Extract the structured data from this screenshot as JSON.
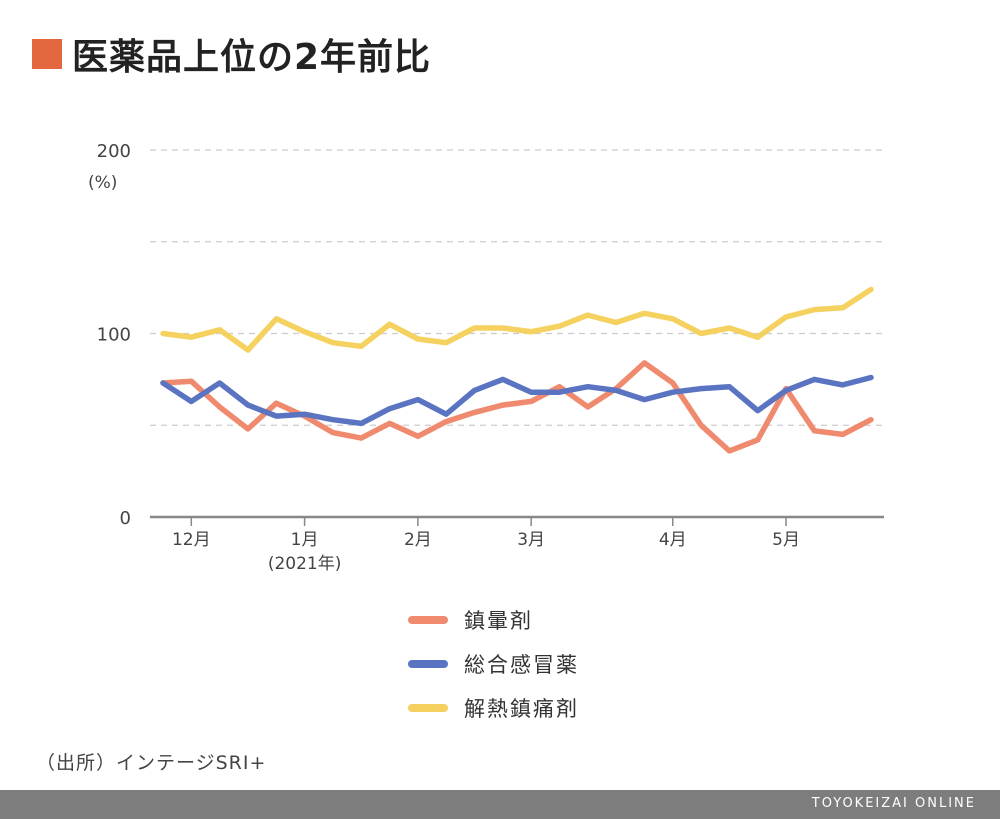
{
  "title": "医薬品上位の2年前比",
  "colors": {
    "title_square": "#e2673f",
    "series": [
      "#f08a6e",
      "#5b74c2",
      "#f5d15f"
    ],
    "grid": "#cccccc",
    "axis": "#888888",
    "footer": "#7d7d7d"
  },
  "chart_data": {
    "type": "line",
    "y_unit_label": "(%)",
    "ylim": [
      0,
      200
    ],
    "y_ticks": [
      "0",
      "100",
      "200"
    ],
    "y_gridlines": [
      50,
      100,
      150,
      200
    ],
    "x_tick_labels": [
      "12月",
      "1月",
      "2月",
      "3月",
      "4月",
      "5月"
    ],
    "x_tick_positions": [
      1,
      5,
      9,
      13,
      18,
      22
    ],
    "x_sub_label": "(2021年)",
    "x_count": 26,
    "series": [
      {
        "name": "鎮暈剤",
        "values": [
          73,
          74,
          60,
          48,
          62,
          55,
          46,
          43,
          51,
          44,
          52,
          57,
          61,
          63,
          71,
          60,
          70,
          84,
          73,
          50,
          36,
          42,
          70,
          47,
          45,
          53
        ]
      },
      {
        "name": "総合感冒薬",
        "values": [
          73,
          63,
          73,
          61,
          55,
          56,
          53,
          51,
          59,
          64,
          56,
          69,
          75,
          68,
          68,
          71,
          69,
          64,
          68,
          70,
          71,
          58,
          69,
          75,
          72,
          76
        ]
      },
      {
        "name": "解熱鎮痛剤",
        "values": [
          100,
          98,
          102,
          91,
          108,
          101,
          95,
          93,
          105,
          97,
          95,
          103,
          103,
          101,
          104,
          110,
          106,
          111,
          108,
          100,
          103,
          98,
          109,
          113,
          114,
          124
        ]
      }
    ]
  },
  "source": "（出所）インテージSRI+",
  "brand": "TOYOKEIZAI ONLINE"
}
